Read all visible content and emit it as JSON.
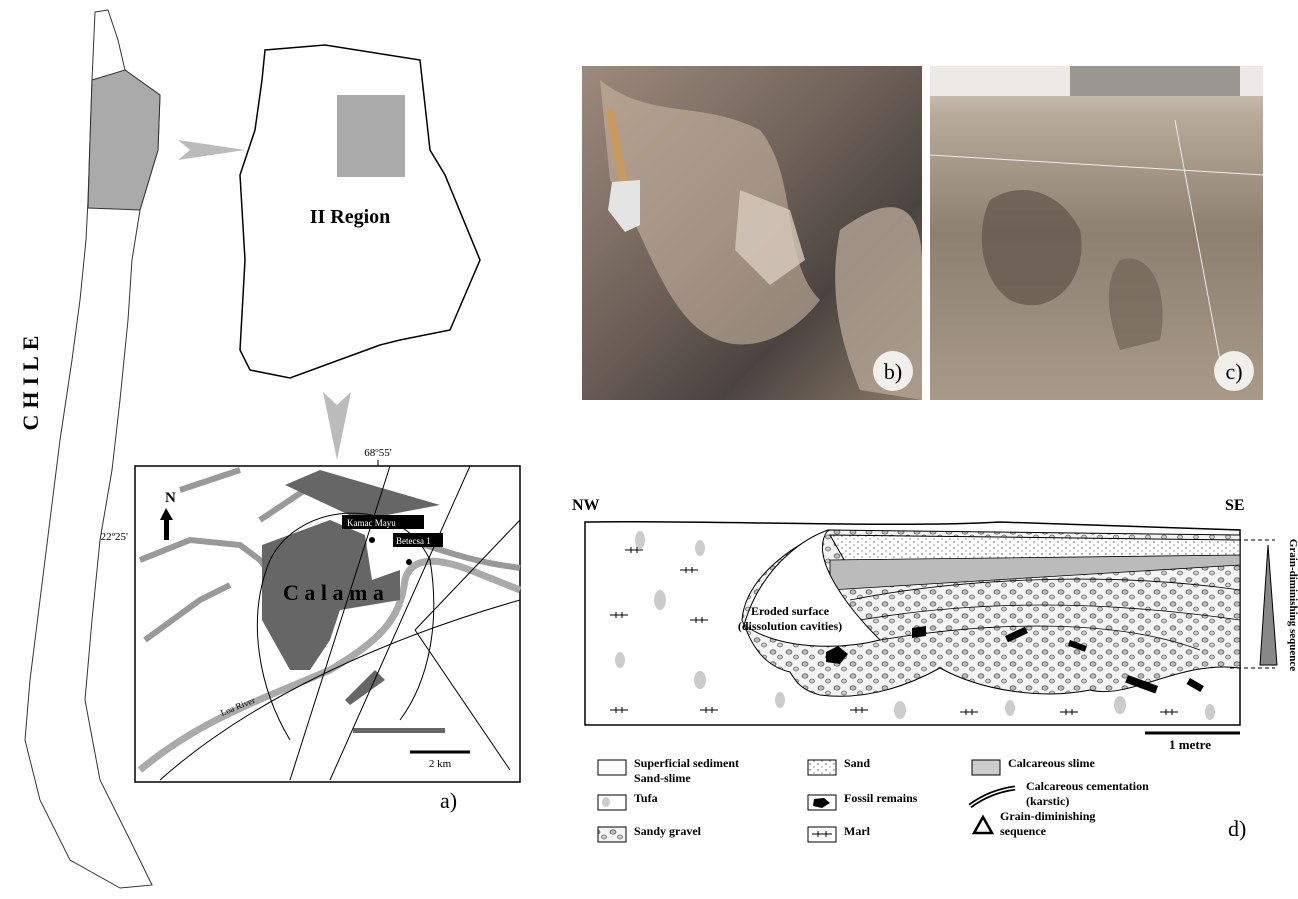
{
  "panel_a": {
    "country": "CHILE",
    "region_label": "II Region",
    "longitude": "68º55'",
    "latitude": "22º25'",
    "north": "N",
    "sites": [
      "Kamac Mayu",
      "Betecsa 1"
    ],
    "city": "C a l a m a",
    "river": "Loa River",
    "scale": "2 km",
    "label": "a)"
  },
  "panel_b": {
    "label": "b)"
  },
  "panel_c": {
    "label": "c)"
  },
  "panel_d": {
    "left": "NW",
    "right": "SE",
    "annotation": [
      "Eroded surface",
      "(dissolution cavities)"
    ],
    "sequence": "Grain-diminishing sequence",
    "scale": "1 metre",
    "label": "d)"
  },
  "legend": [
    {
      "label": [
        "Superficial sediment",
        "Sand-slime"
      ]
    },
    {
      "label": [
        "Sand"
      ]
    },
    {
      "label": [
        "Calcareous slime"
      ]
    },
    {
      "label": [
        "Tufa"
      ]
    },
    {
      "label": [
        "Fossil remains"
      ]
    },
    {
      "label": [
        "Calcareous cementation",
        "(karstic)"
      ]
    },
    {
      "label": [
        "Sandy gravel"
      ]
    },
    {
      "label": [
        "Marl"
      ]
    },
    {
      "label": [
        "Grain-diminishing",
        "sequence"
      ]
    }
  ]
}
